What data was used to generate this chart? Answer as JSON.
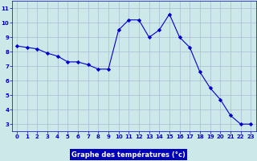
{
  "x": [
    0,
    1,
    2,
    3,
    4,
    5,
    6,
    7,
    8,
    9,
    10,
    11,
    12,
    13,
    14,
    15,
    16,
    17,
    18,
    19,
    20,
    21,
    22,
    23
  ],
  "y": [
    8.4,
    8.3,
    8.2,
    7.9,
    7.7,
    7.3,
    7.3,
    7.1,
    6.8,
    6.8,
    9.5,
    10.2,
    10.2,
    9.0,
    9.5,
    10.6,
    9.0,
    8.3,
    6.6,
    5.5,
    4.7,
    3.6,
    3.0,
    3.0
  ],
  "line_color": "#0000cc",
  "marker": "D",
  "marker_size": 2.2,
  "background_color": "#cce8e8",
  "grid_color": "#aabbd4",
  "xlabel": "Graphe des températures (°c)",
  "ylim": [
    2.5,
    11.5
  ],
  "xlim": [
    -0.5,
    23.5
  ],
  "yticks": [
    3,
    4,
    5,
    6,
    7,
    8,
    9,
    10,
    11
  ],
  "xticks": [
    0,
    1,
    2,
    3,
    4,
    5,
    6,
    7,
    8,
    9,
    10,
    11,
    12,
    13,
    14,
    15,
    16,
    17,
    18,
    19,
    20,
    21,
    22,
    23
  ],
  "tick_color": "#0000cc",
  "tick_fontsize": 5.0,
  "label_fontsize": 6.0,
  "label_bg": "#0000bb",
  "label_text_color": "#ffffff"
}
